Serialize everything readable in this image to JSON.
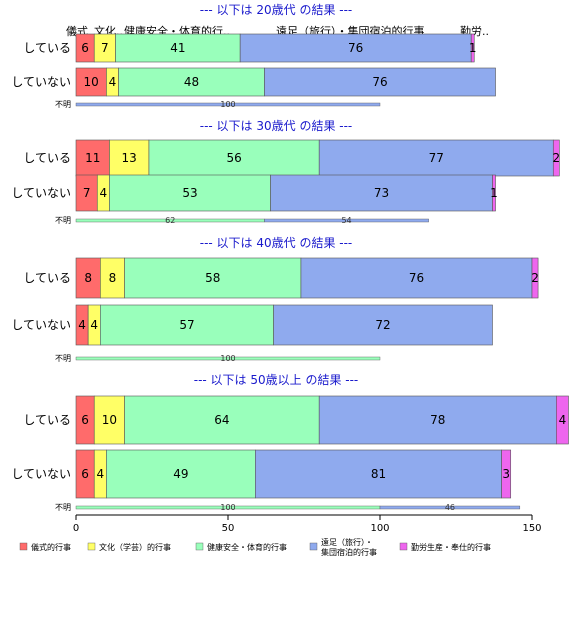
{
  "chart_data": {
    "type": "bar",
    "orientation": "horizontal",
    "stacked": true,
    "x_ticks": [
      0,
      50,
      100,
      150
    ],
    "xlim": [
      0,
      150
    ],
    "categories": [
      "儀式的行事",
      "文化（学芸）的行事",
      "健康安全・体育的行事",
      "遠足（旅行）・集団宿泊的行事",
      "勤労生産・奉仕的行事"
    ],
    "column_headers": [
      "儀式",
      "文化..",
      "健康安全・体育的行..",
      "遠足（旅行）・集団宿泊的行事",
      "勤労.."
    ],
    "colors": [
      "#ff6b6b",
      "#ffff66",
      "#99ffbb",
      "#8faaee",
      "#ee66ee"
    ],
    "legend": {
      "placement": "bottom",
      "items": [
        "儀式的行事",
        "文化（学芸）的行事",
        "健康安全・体育的行事",
        "遠足（旅行）・\n集団宿泊的行事",
        "勤労生産・奉仕的行事"
      ]
    },
    "panels": [
      {
        "title": "--- 以下は 20歳代 の結果 ---",
        "rows": [
          {
            "label": "している",
            "values": [
              6,
              7,
              41,
              76,
              1
            ]
          },
          {
            "label": "していない",
            "values": [
              10,
              4,
              48,
              76,
              0
            ]
          }
        ],
        "unknown": {
          "label": "不明",
          "values": [
            0,
            0,
            0,
            100,
            0
          ]
        }
      },
      {
        "title": "--- 以下は 30歳代 の結果 ---",
        "rows": [
          {
            "label": "している",
            "values": [
              11,
              13,
              56,
              77,
              2
            ]
          },
          {
            "label": "していない",
            "values": [
              7,
              4,
              53,
              73,
              1
            ]
          }
        ],
        "unknown": {
          "label": "不明",
          "values": [
            0,
            0,
            62,
            54,
            0
          ]
        }
      },
      {
        "title": "--- 以下は 40歳代 の結果 ---",
        "rows": [
          {
            "label": "している",
            "values": [
              8,
              8,
              58,
              76,
              2
            ]
          },
          {
            "label": "していない",
            "values": [
              4,
              4,
              57,
              72,
              0
            ]
          }
        ],
        "unknown": {
          "label": "不明",
          "values": [
            0,
            0,
            100,
            0,
            0
          ]
        }
      },
      {
        "title": "--- 以下は 50歳以上 の結果 ---",
        "rows": [
          {
            "label": "している",
            "values": [
              6,
              10,
              64,
              78,
              4
            ]
          },
          {
            "label": "していない",
            "values": [
              6,
              4,
              49,
              81,
              3
            ]
          }
        ],
        "unknown": {
          "label": "不明",
          "values": [
            0,
            0,
            100,
            46,
            0
          ]
        }
      }
    ]
  }
}
